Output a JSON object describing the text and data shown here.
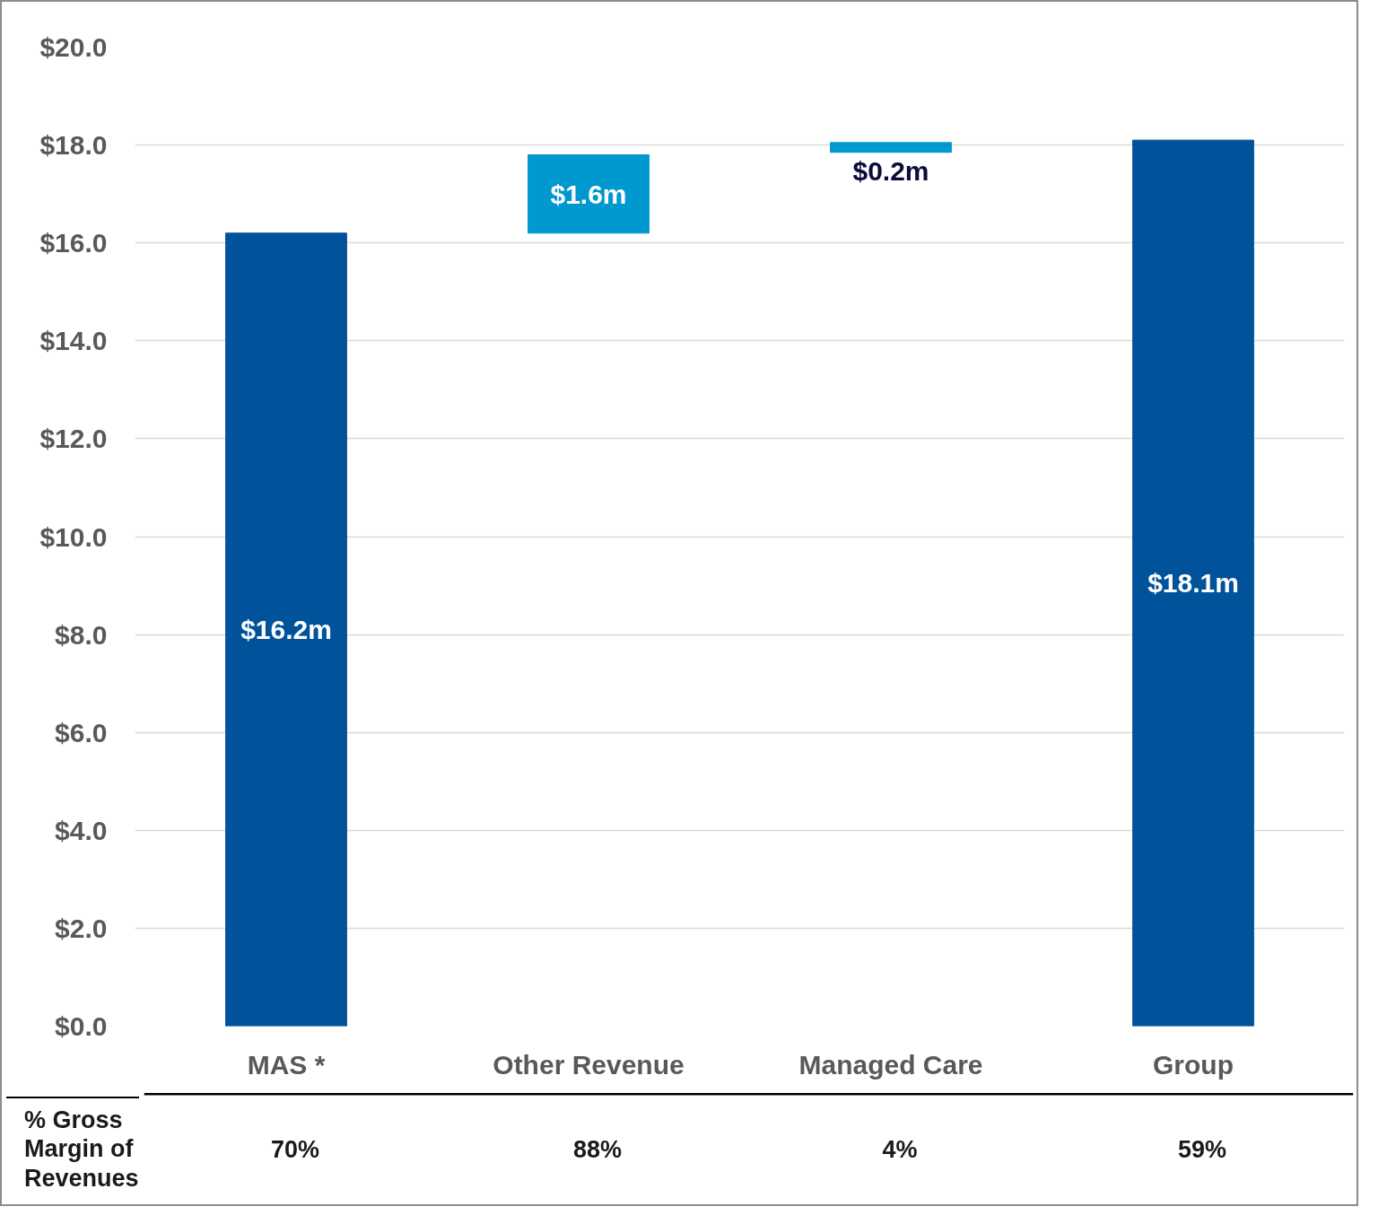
{
  "chart_data": {
    "type": "bar",
    "categories": [
      "MAS *",
      "Other Revenue",
      "Managed Care",
      "Group"
    ],
    "values": [
      16.2,
      1.6,
      0.2,
      18.1
    ],
    "base": [
      0,
      16.2,
      17.85,
      0
    ],
    "colors": [
      "#00539b",
      "#0099cf",
      "#0099cf",
      "#00539b"
    ],
    "value_labels": [
      "$16.2m",
      "$1.6m",
      "$0.2m",
      "$18.1m"
    ],
    "ylim": [
      0,
      20
    ],
    "yticks": [
      {
        "value": 0,
        "label": "$0.0"
      },
      {
        "value": 2,
        "label": "$2.0"
      },
      {
        "value": 4,
        "label": "$4.0"
      },
      {
        "value": 6,
        "label": "$6.0"
      },
      {
        "value": 8,
        "label": "$8.0"
      },
      {
        "value": 10,
        "label": "$10.0"
      },
      {
        "value": 12,
        "label": "$12.0"
      },
      {
        "value": 14,
        "label": "$14.0"
      },
      {
        "value": 16,
        "label": "$16.0"
      },
      {
        "value": 18,
        "label": "$18.0"
      },
      {
        "value": 20,
        "label": "$20.0"
      }
    ],
    "grid": "y",
    "annotations": [
      "% Gross\nMargin of\nRevenues",
      "70%",
      "88%",
      "4%",
      "59%"
    ]
  }
}
